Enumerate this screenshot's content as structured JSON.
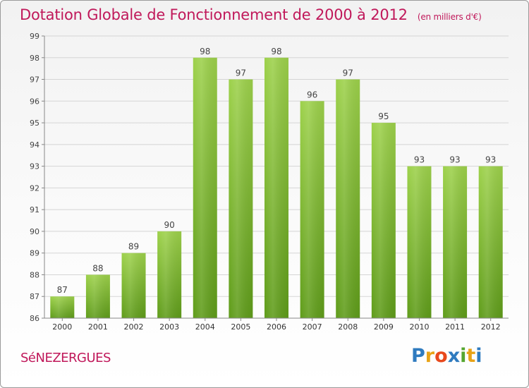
{
  "title": "Dotation Globale de Fonctionnement de 2000 à 2012",
  "subtitle": "(en milliers d'€)",
  "commune": "SéNEZERGUES",
  "logo": {
    "text": "Proxiti",
    "colors": [
      "#2f7bbf",
      "#e8a317",
      "#e8491d",
      "#2f7bbf",
      "#55a630",
      "#e8a317",
      "#2f7bbf"
    ]
  },
  "colors": {
    "title": "#c0185a",
    "bar_top": "#9dd14b",
    "bar_bottom": "#5f9c1a",
    "grid": "#d5d5d5"
  },
  "chart_data": {
    "type": "bar",
    "title": "Dotation Globale de Fonctionnement de 2000 à 2012",
    "subtitle": "(en milliers d'€)",
    "xlabel": "",
    "ylabel": "",
    "categories": [
      "2000",
      "2001",
      "2002",
      "2003",
      "2004",
      "2005",
      "2006",
      "2007",
      "2008",
      "2009",
      "2010",
      "2011",
      "2012"
    ],
    "values": [
      87,
      88,
      89,
      90,
      98,
      97,
      98,
      96,
      97,
      95,
      93,
      93,
      93
    ],
    "ylim": [
      86,
      99
    ],
    "yticks": [
      86,
      87,
      88,
      89,
      90,
      91,
      92,
      93,
      94,
      95,
      96,
      97,
      98,
      99
    ],
    "grid": true,
    "data_labels": true
  }
}
